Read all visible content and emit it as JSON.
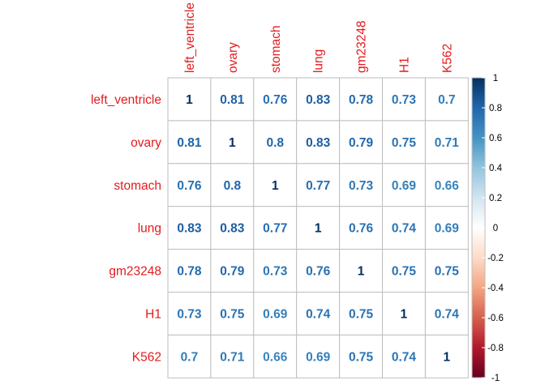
{
  "chart_data": {
    "type": "heatmap",
    "title": "",
    "rows": [
      "left_ventricle",
      "ovary",
      "stomach",
      "lung",
      "gm23248",
      "H1",
      "K562"
    ],
    "columns": [
      "left_ventricle",
      "ovary",
      "stomach",
      "lung",
      "gm23248",
      "H1",
      "K562"
    ],
    "values": [
      [
        1,
        0.81,
        0.76,
        0.83,
        0.78,
        0.73,
        0.7
      ],
      [
        0.81,
        1,
        0.8,
        0.83,
        0.79,
        0.75,
        0.71
      ],
      [
        0.76,
        0.8,
        1,
        0.77,
        0.73,
        0.69,
        0.66
      ],
      [
        0.83,
        0.83,
        0.77,
        1,
        0.76,
        0.74,
        0.69
      ],
      [
        0.78,
        0.79,
        0.73,
        0.76,
        1,
        0.75,
        0.75
      ],
      [
        0.73,
        0.75,
        0.69,
        0.74,
        0.75,
        1,
        0.74
      ],
      [
        0.7,
        0.71,
        0.66,
        0.69,
        0.75,
        0.74,
        1
      ]
    ],
    "colorbar": {
      "range": [
        -1,
        1
      ],
      "ticks": [
        1,
        0.8,
        0.6,
        0.4,
        0.2,
        0,
        -0.2,
        -0.4,
        -0.6,
        -0.8,
        -1
      ],
      "tick_labels": [
        "1",
        "0.8",
        "0.6",
        "0.4",
        "0.2",
        "0",
        "-0.2",
        "-0.4",
        "-0.6",
        "-0.8",
        "-1"
      ],
      "color_stops": [
        "#67001F",
        "#B2182B",
        "#D6604D",
        "#F4A582",
        "#FDDBC7",
        "#FFFFFF",
        "#D1E5F0",
        "#92C5DE",
        "#4393C3",
        "#2166AC",
        "#053061"
      ]
    },
    "label_color": "#E41A1C",
    "grid_color": "#BEBEBE"
  }
}
